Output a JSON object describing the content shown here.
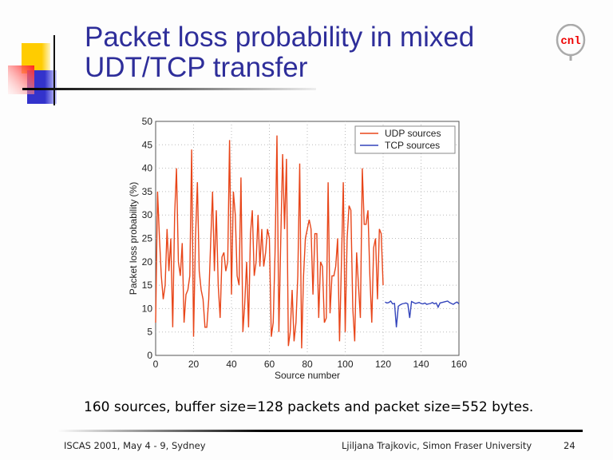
{
  "slide": {
    "title_line1": "Packet loss probability in mixed",
    "title_line2": "UDT/TCP transfer",
    "logo_text": "cnl",
    "caption": "160 sources, buffer size=128 packets and packet size=552 bytes.",
    "footer_left": "ISCAS 2001, May 4 - 9, Sydney",
    "footer_right": "Ljiljana Trajkovic, Simon Fraser University",
    "page": "24"
  },
  "chart_data": {
    "type": "line",
    "xlabel": "Source number",
    "ylabel": "Packet loss probability (%)",
    "xlim": [
      0,
      160
    ],
    "ylim": [
      0,
      50
    ],
    "xticks": [
      0,
      20,
      40,
      60,
      80,
      100,
      120,
      140,
      160
    ],
    "yticks": [
      0,
      5,
      10,
      15,
      20,
      25,
      30,
      35,
      40,
      45,
      50
    ],
    "grid": true,
    "legend": "top-right",
    "series": [
      {
        "name": "UDP sources",
        "color": "#e8461a",
        "x_start": 0,
        "values": [
          7,
          35,
          25,
          17,
          12,
          15,
          27,
          18,
          25,
          6,
          30,
          40,
          20,
          17,
          24,
          7,
          13,
          14,
          17,
          44,
          4,
          25,
          37,
          18,
          14,
          12,
          6,
          6,
          12,
          24,
          35,
          18,
          31,
          15,
          8,
          21,
          22,
          18,
          20,
          46,
          13,
          35,
          30,
          17,
          15,
          38,
          5,
          11,
          20,
          6,
          26,
          31,
          17,
          20,
          30,
          19,
          27,
          19,
          22,
          27,
          25,
          4,
          7,
          22,
          47,
          5,
          25,
          43,
          27,
          42,
          2,
          5,
          14,
          3,
          7,
          17,
          41,
          1.5,
          17,
          25,
          27,
          29,
          27,
          13,
          26,
          26,
          8,
          20,
          19,
          7,
          8,
          37,
          9,
          17,
          17,
          19,
          25,
          3,
          20,
          37,
          5,
          25,
          32,
          31,
          10,
          3,
          22,
          15,
          8,
          40,
          28,
          28,
          31,
          17,
          7,
          23,
          25,
          12,
          27,
          26,
          15
        ]
      },
      {
        "name": "TCP sources",
        "color": "#3344bb",
        "x_start": 121,
        "values": [
          11.4,
          11.2,
          11.3,
          11.6,
          11,
          11.1,
          6,
          10.5,
          10.8,
          11,
          11.1,
          11.2,
          11,
          8,
          11.5,
          11.3,
          11.1,
          11.2,
          11.3,
          11.1,
          11,
          11.2,
          10.9,
          11,
          11.1,
          11.3,
          11,
          11.2,
          10.3,
          11.2,
          11.3,
          11.4,
          11.5,
          11.6,
          11.3,
          11.1,
          10.9,
          11.2,
          11.4,
          11
        ]
      }
    ]
  }
}
